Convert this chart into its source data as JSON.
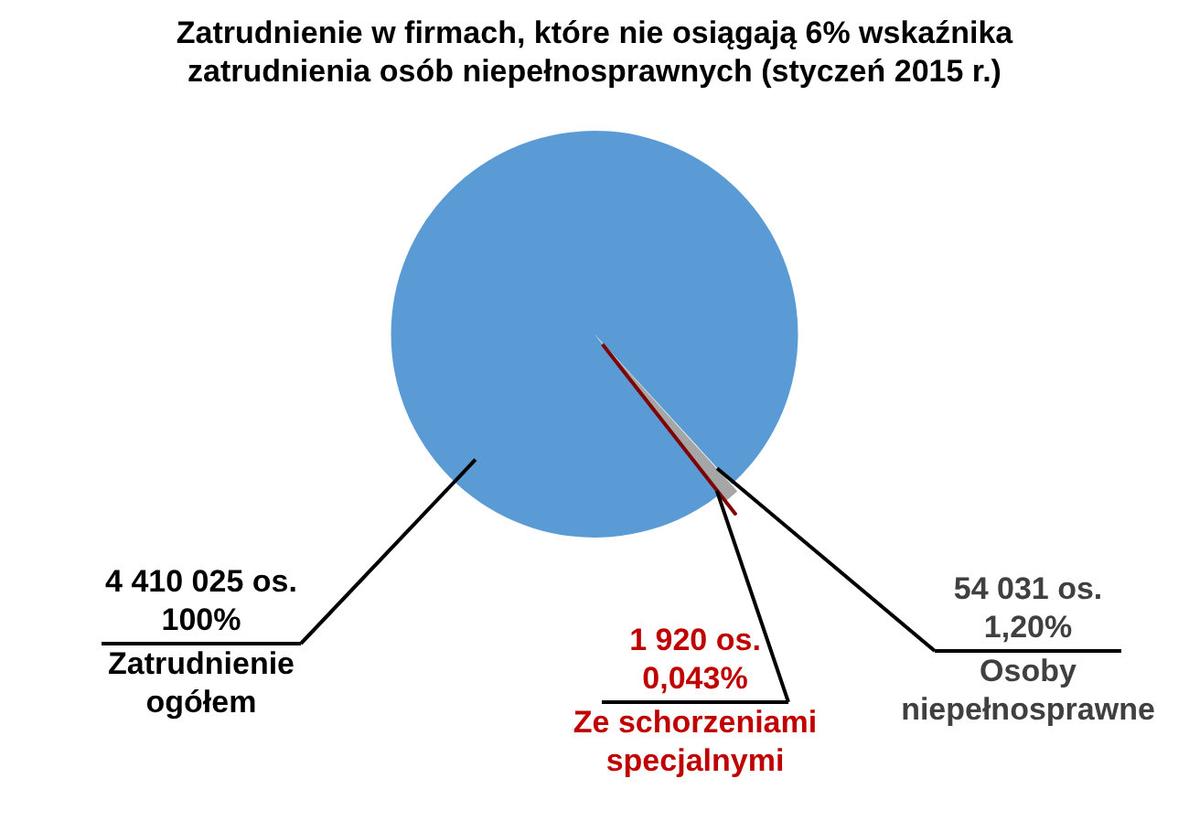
{
  "chart_data": {
    "type": "pie",
    "title": "Zatrudnienie w firmach, które nie osiągają 6% wskaźnika\nzatrudnienia osób niepełnosprawnych (styczeń 2015 r.)",
    "categories": [
      "Zatrudnienie ogółem",
      "Osoby niepełnosprawne",
      "Ze schorzeniami specjalnymi"
    ],
    "values": [
      4410025,
      54031,
      1920
    ],
    "colors": [
      "#5b9bd5",
      "#a6a6a6",
      "#7f0000"
    ],
    "value_labels": [
      "4 410 025 os.\n100%",
      "54 031 os.\n1,20%",
      "1 920 os.\n0,043%"
    ]
  }
}
